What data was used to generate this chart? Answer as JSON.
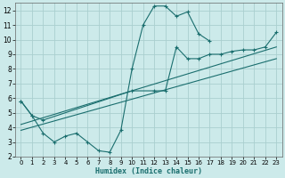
{
  "xlabel": "Humidex (Indice chaleur)",
  "bg_color": "#cceaea",
  "grid_color": "#aacfcf",
  "line_color": "#1a6e6e",
  "xlim": [
    -0.5,
    23.5
  ],
  "ylim": [
    2,
    12.5
  ],
  "xticks": [
    0,
    1,
    2,
    3,
    4,
    5,
    6,
    7,
    8,
    9,
    10,
    11,
    12,
    13,
    14,
    15,
    16,
    17,
    18,
    19,
    20,
    21,
    22,
    23
  ],
  "yticks": [
    2,
    3,
    4,
    5,
    6,
    7,
    8,
    9,
    10,
    11,
    12
  ],
  "curve1_x": [
    0,
    1,
    2,
    3,
    4,
    5,
    6,
    7,
    8,
    9,
    10,
    11,
    12,
    13,
    14,
    15,
    16,
    17
  ],
  "curve1_y": [
    5.8,
    4.8,
    3.6,
    3.0,
    3.4,
    3.6,
    3.0,
    2.4,
    2.3,
    3.8,
    8.0,
    11.0,
    12.3,
    12.3,
    11.6,
    11.9,
    10.4,
    9.9
  ],
  "curve2_x": [
    0,
    1,
    2,
    10,
    12,
    13,
    14,
    15,
    16,
    17,
    18,
    19,
    20,
    21,
    22,
    23
  ],
  "curve2_y": [
    5.8,
    4.8,
    4.5,
    6.5,
    6.5,
    6.5,
    9.5,
    8.7,
    8.7,
    9.0,
    9.0,
    9.2,
    9.3,
    9.3,
    9.5,
    10.5
  ],
  "line1_x": [
    0,
    23
  ],
  "line1_y": [
    4.2,
    9.5
  ],
  "line2_x": [
    0,
    23
  ],
  "line2_y": [
    3.8,
    8.7
  ]
}
